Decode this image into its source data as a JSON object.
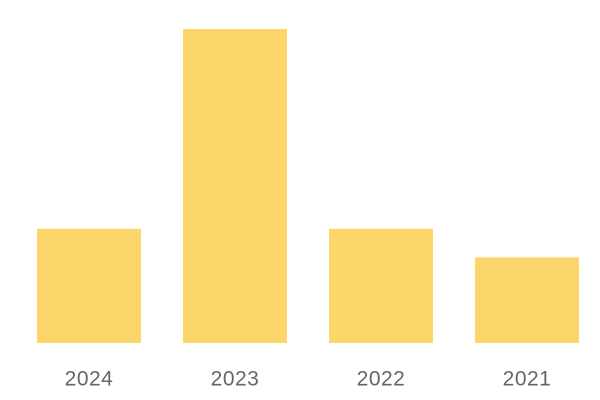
{
  "chart_data": {
    "type": "bar",
    "categories": [
      "2024",
      "2023",
      "2022",
      "2021"
    ],
    "values": [
      40,
      110,
      40,
      30
    ],
    "color": "#fdd66b",
    "ylim": [
      0,
      110
    ]
  }
}
